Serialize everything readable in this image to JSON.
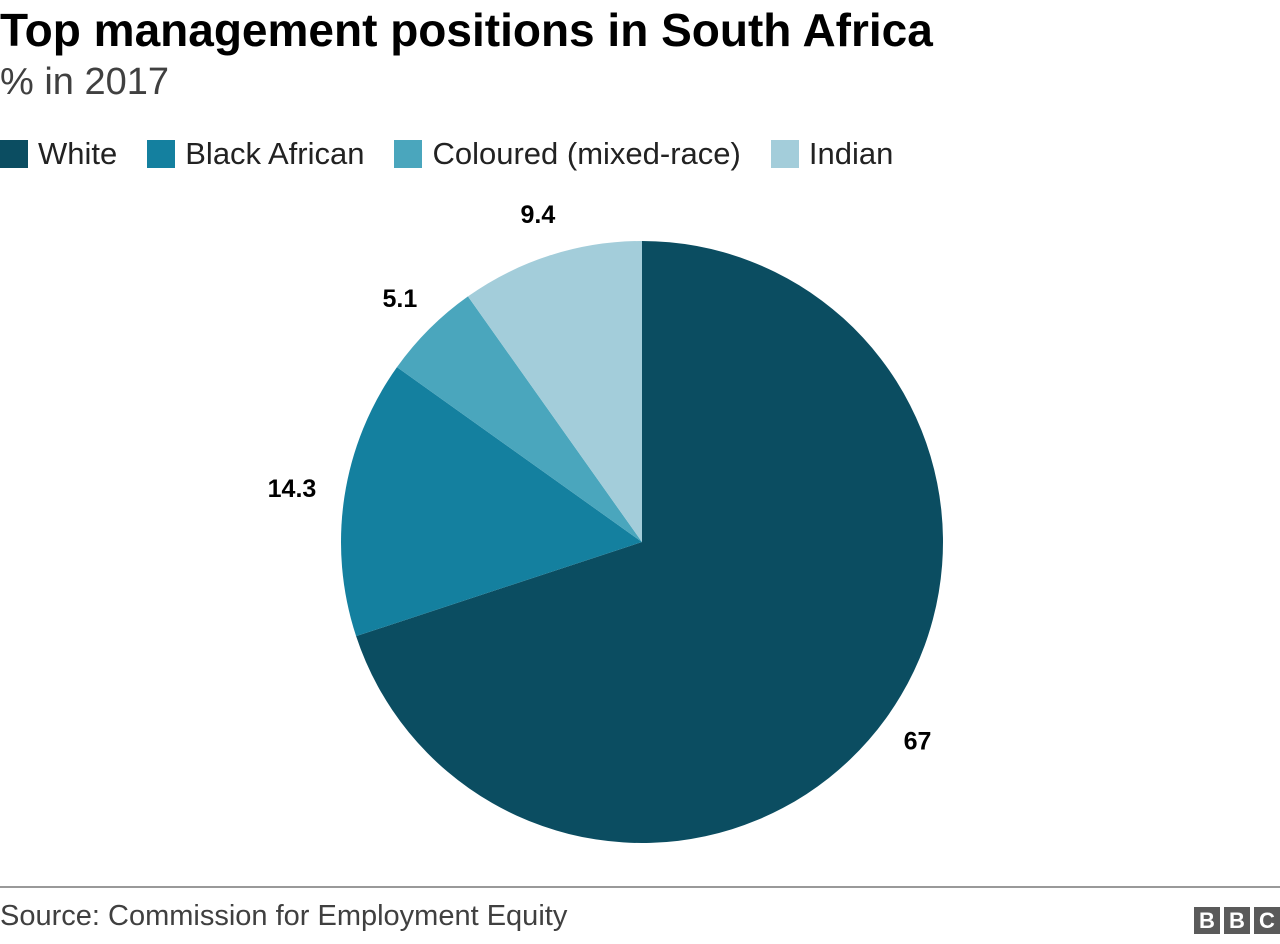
{
  "title": "Top management positions in South Africa",
  "subtitle": "% in 2017",
  "source": "Source: Commission for Employment Equity",
  "logo": [
    "B",
    "B",
    "C"
  ],
  "chart_data": {
    "type": "pie",
    "title": "Top management positions in South Africa",
    "subtitle": "% in 2017",
    "unit": "%",
    "start": "12 o'clock, clockwise",
    "legend_position": "top-left",
    "slices": [
      {
        "name": "White",
        "value": 67,
        "label": "67",
        "color": "#0b4d61"
      },
      {
        "name": "Black African",
        "value": 14.3,
        "label": "14.3",
        "color": "#14809f"
      },
      {
        "name": "Coloured (mixed-race)",
        "value": 5.1,
        "label": "5.1",
        "color": "#4aa6bd"
      },
      {
        "name": "Indian",
        "value": 9.4,
        "label": "9.4",
        "color": "#a3cdda"
      }
    ]
  }
}
